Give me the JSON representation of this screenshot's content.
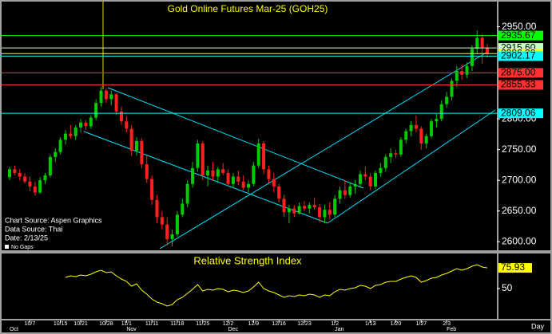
{
  "chart_data": [
    {
      "type": "candlestick",
      "title": "Gold Online Futures Mar-25 (GOH25)",
      "notes": [
        "Chart Source: Aspen Graphics",
        "Data Source: Thai",
        "Date:   2/13/25"
      ],
      "no_gaps": "No Gaps",
      "period": "Day",
      "categories": [
        null,
        null,
        null,
        null,
        "10/7",
        null,
        null,
        null,
        null,
        null,
        "10/15",
        null,
        null,
        null,
        "10/21",
        null,
        null,
        null,
        null,
        "10/28",
        null,
        null,
        null,
        "11/1",
        null,
        null,
        null,
        null,
        "11/11",
        null,
        null,
        null,
        null,
        "11/18",
        null,
        null,
        null,
        null,
        "11/25",
        null,
        null,
        null,
        null,
        "12/2",
        null,
        null,
        null,
        null,
        "12/9",
        null,
        null,
        null,
        null,
        "12/16",
        null,
        null,
        null,
        null,
        "12/23",
        null,
        null,
        null,
        null,
        null,
        "1/2",
        null,
        null,
        null,
        null,
        null,
        null,
        "1/13",
        null,
        null,
        null,
        null,
        "1/20",
        null,
        null,
        null,
        null,
        "1/27",
        null,
        null,
        null,
        null,
        "2/3",
        null,
        null,
        null,
        null,
        null,
        null,
        null,
        null
      ],
      "months": [
        "Oct",
        null,
        null,
        null,
        null,
        null,
        null,
        null,
        null,
        null,
        null,
        null,
        null,
        null,
        null,
        null,
        null,
        null,
        null,
        null,
        null,
        null,
        null,
        "Nov",
        null,
        null,
        null,
        null,
        null,
        null,
        null,
        null,
        null,
        null,
        null,
        null,
        null,
        null,
        null,
        null,
        null,
        null,
        null,
        "Dec",
        null,
        null,
        null,
        null,
        null,
        null,
        null,
        null,
        null,
        null,
        null,
        null,
        null,
        null,
        null,
        null,
        null,
        null,
        null,
        null,
        "Jan",
        null,
        null,
        null,
        null,
        null,
        null,
        null,
        null,
        null,
        null,
        null,
        null,
        null,
        null,
        null,
        null,
        null,
        null,
        null,
        null,
        null,
        "Feb",
        null,
        null,
        null,
        null,
        null,
        null,
        null,
        null
      ],
      "open": [
        2705,
        2718,
        2712,
        2706,
        2698,
        2690,
        2680,
        2700,
        2708,
        2738,
        2746,
        2766,
        2776,
        2772,
        2786,
        2794,
        2788,
        2802,
        2826,
        2846,
        2832,
        2840,
        2812,
        2796,
        2784,
        2748,
        2764,
        2726,
        2702,
        2668,
        2640,
        2628,
        2604,
        2612,
        2644,
        2662,
        2694,
        2720,
        2760,
        2708,
        2716,
        2706,
        2718,
        2712,
        2694,
        2706,
        2698,
        2688,
        2694,
        2724,
        2760,
        2718,
        2702,
        2690,
        2670,
        2648,
        2654,
        2646,
        2658,
        2654,
        2660,
        2656,
        2640,
        2652,
        2644,
        2670,
        2684,
        2676,
        2690,
        2694,
        2710,
        2706,
        2690,
        2712,
        2720,
        2738,
        2744,
        2742,
        2766,
        2780,
        2790,
        2784,
        2760,
        2772,
        2796,
        2800,
        2824,
        2836,
        2862,
        2878,
        2872,
        2886,
        2914,
        2932,
        2916
      ],
      "high": [
        2722,
        2724,
        2718,
        2712,
        2706,
        2698,
        2705,
        2712,
        2742,
        2752,
        2770,
        2782,
        2790,
        2790,
        2800,
        2798,
        2806,
        2832,
        2852,
        2850,
        2846,
        2842,
        2820,
        2804,
        2790,
        2770,
        2768,
        2740,
        2708,
        2676,
        2650,
        2640,
        2620,
        2650,
        2670,
        2700,
        2730,
        2766,
        2764,
        2724,
        2730,
        2722,
        2728,
        2718,
        2712,
        2716,
        2708,
        2700,
        2730,
        2768,
        2764,
        2724,
        2712,
        2694,
        2676,
        2660,
        2660,
        2664,
        2666,
        2664,
        2672,
        2662,
        2660,
        2664,
        2676,
        2690,
        2700,
        2696,
        2700,
        2716,
        2722,
        2712,
        2716,
        2728,
        2742,
        2752,
        2750,
        2770,
        2784,
        2796,
        2806,
        2788,
        2776,
        2800,
        2808,
        2830,
        2844,
        2866,
        2886,
        2888,
        2892,
        2920,
        2944,
        2938,
        2922
      ],
      "low": [
        2700,
        2708,
        2700,
        2695,
        2682,
        2675,
        2678,
        2694,
        2705,
        2730,
        2742,
        2758,
        2768,
        2766,
        2778,
        2782,
        2784,
        2798,
        2820,
        2826,
        2822,
        2806,
        2790,
        2778,
        2740,
        2740,
        2720,
        2696,
        2660,
        2630,
        2620,
        2594,
        2592,
        2608,
        2640,
        2656,
        2688,
        2714,
        2700,
        2690,
        2700,
        2698,
        2708,
        2690,
        2688,
        2692,
        2684,
        2680,
        2690,
        2720,
        2710,
        2696,
        2680,
        2664,
        2640,
        2630,
        2640,
        2644,
        2650,
        2646,
        2652,
        2632,
        2630,
        2636,
        2640,
        2662,
        2670,
        2672,
        2678,
        2688,
        2700,
        2684,
        2686,
        2706,
        2714,
        2728,
        2736,
        2738,
        2760,
        2772,
        2778,
        2750,
        2752,
        2768,
        2786,
        2796,
        2818,
        2830,
        2852,
        2864,
        2866,
        2878,
        2906,
        2890,
        2900
      ],
      "close": [
        2718,
        2712,
        2706,
        2698,
        2690,
        2680,
        2700,
        2708,
        2738,
        2746,
        2766,
        2776,
        2772,
        2786,
        2794,
        2788,
        2802,
        2826,
        2846,
        2832,
        2840,
        2812,
        2796,
        2784,
        2748,
        2764,
        2726,
        2702,
        2668,
        2640,
        2628,
        2604,
        2612,
        2644,
        2662,
        2694,
        2720,
        2760,
        2708,
        2716,
        2706,
        2718,
        2712,
        2694,
        2706,
        2698,
        2688,
        2694,
        2724,
        2760,
        2718,
        2702,
        2690,
        2670,
        2648,
        2654,
        2646,
        2658,
        2654,
        2660,
        2656,
        2640,
        2652,
        2644,
        2670,
        2684,
        2676,
        2690,
        2694,
        2710,
        2706,
        2690,
        2712,
        2720,
        2738,
        2744,
        2742,
        2766,
        2780,
        2790,
        2784,
        2760,
        2772,
        2796,
        2800,
        2824,
        2836,
        2862,
        2878,
        2872,
        2886,
        2914,
        2932,
        2916,
        2906
      ],
      "up_color": "#00cc00",
      "down_color": "#ff2020",
      "ylim": [
        2586,
        2991
      ],
      "yticks": [
        {
          "value": 2600,
          "label": "2600.00"
        },
        {
          "value": 2650,
          "label": "2650.00"
        },
        {
          "value": 2700,
          "label": "2700.00"
        },
        {
          "value": 2750,
          "label": "2750.00"
        },
        {
          "value": 2800,
          "label": "2800.00"
        },
        {
          "value": 2950,
          "label": "2950.00"
        }
      ],
      "levels": [
        {
          "value": 2935.67,
          "label": "2935.67",
          "color": "#00ff00"
        },
        {
          "value": 2915.6,
          "label": "2915.60",
          "color": "#c8ffc8"
        },
        {
          "value": 2906.3,
          "label": "2906.30",
          "color": "#ffff00"
        },
        {
          "value": 2902.17,
          "label": "2902.17",
          "color": "#00ffff"
        },
        {
          "value": 2875,
          "label": "2875.00",
          "color": "#ff3030"
        },
        {
          "value": 2855.33,
          "label": "2855.33",
          "color": "#ff3030"
        },
        {
          "value": 2809.06,
          "label": "2809.06",
          "color": "#00ffff"
        }
      ]
    },
    {
      "type": "line",
      "title": "Relative Strength Index",
      "values": [
        null,
        null,
        null,
        null,
        null,
        null,
        null,
        null,
        null,
        null,
        null,
        64,
        66,
        65,
        67,
        66,
        68,
        71,
        73,
        70,
        71,
        66,
        62,
        59,
        53,
        56,
        48,
        43,
        37,
        33,
        31,
        28,
        30,
        36,
        39,
        44,
        49,
        55,
        47,
        49,
        48,
        50,
        49,
        46,
        48,
        47,
        45,
        47,
        52,
        58,
        50,
        47,
        45,
        42,
        39,
        41,
        40,
        42,
        41,
        43,
        42,
        39,
        42,
        41,
        46,
        49,
        48,
        50,
        51,
        54,
        53,
        50,
        54,
        55,
        58,
        59,
        59,
        62,
        64,
        66,
        64,
        58,
        60,
        63,
        64,
        67,
        69,
        72,
        75,
        73,
        75,
        78,
        80,
        77,
        75.93
      ],
      "color": "#ffff00",
      "ylim": [
        12,
        94
      ],
      "yticks": [
        50
      ]
    }
  ]
}
